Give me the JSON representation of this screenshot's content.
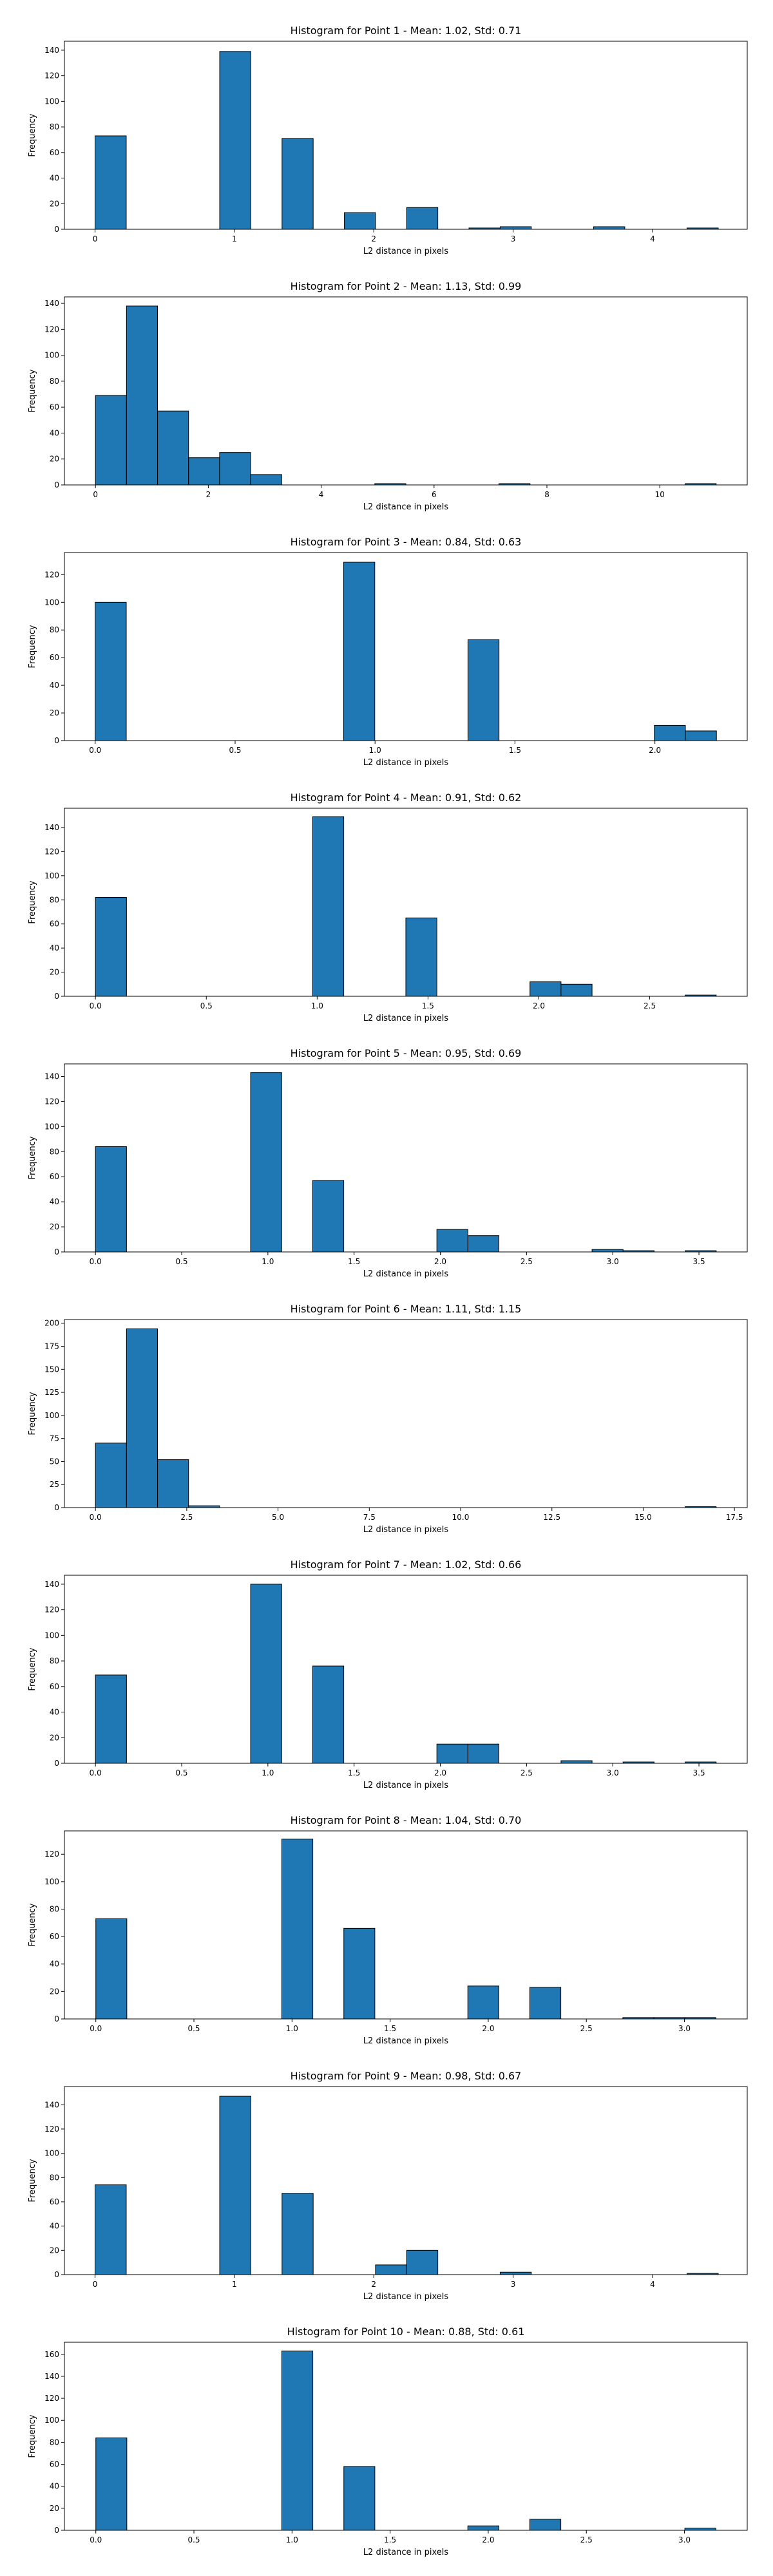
{
  "figure": {
    "bar_color": "#1f77b4",
    "edge_color": "#000000",
    "background": "#ffffff"
  },
  "chart_data": [
    {
      "type": "bar",
      "title": "Histogram for Point 1 - Mean: 1.02, Std: 0.71",
      "xlabel": "L2 distance in pixels",
      "ylabel": "Frequency",
      "xlim": [
        -0.22,
        4.68
      ],
      "ylim": [
        0,
        147
      ],
      "xticks": [
        0,
        1,
        2,
        3,
        4
      ],
      "xtick_labels": [
        "0",
        "1",
        "2",
        "3",
        "4"
      ],
      "yticks": [
        0,
        20,
        40,
        60,
        80,
        100,
        120,
        140
      ],
      "bin_edges": [
        0,
        0.2236,
        0.4472,
        0.6708,
        0.8944,
        1.118,
        1.3416,
        1.5652,
        1.7888,
        2.0124,
        2.236,
        2.4596,
        2.6832,
        2.9068,
        3.1304,
        3.354,
        3.5776,
        3.8012,
        4.0248,
        4.2484,
        4.472
      ],
      "values": [
        73,
        0,
        0,
        0,
        139,
        0,
        71,
        0,
        13,
        0,
        17,
        0,
        1,
        2,
        0,
        0,
        2,
        0,
        0,
        1
      ]
    },
    {
      "type": "bar",
      "title": "Histogram for Point 2 - Mean: 1.13, Std: 0.99",
      "xlabel": "L2 distance in pixels",
      "ylabel": "Frequency",
      "xlim": [
        -0.55,
        11.55
      ],
      "ylim": [
        0,
        145
      ],
      "xticks": [
        0,
        2,
        4,
        6,
        8,
        10
      ],
      "xtick_labels": [
        "0",
        "2",
        "4",
        "6",
        "8",
        "10"
      ],
      "yticks": [
        0,
        20,
        40,
        60,
        80,
        100,
        120,
        140
      ],
      "bin_edges": [
        0,
        0.55,
        1.1,
        1.65,
        2.2,
        2.75,
        3.3,
        3.85,
        4.4,
        4.95,
        5.5,
        6.05,
        6.6,
        7.15,
        7.7,
        8.25,
        8.8,
        9.35,
        9.9,
        10.45,
        11.0
      ],
      "values": [
        69,
        138,
        57,
        21,
        25,
        8,
        0,
        0,
        0,
        1,
        0,
        0,
        0,
        1,
        0,
        0,
        0,
        0,
        0,
        1
      ]
    },
    {
      "type": "bar",
      "title": "Histogram for Point 3 - Mean: 0.84, Std: 0.63",
      "xlabel": "L2 distance in pixels",
      "ylabel": "Frequency",
      "xlim": [
        -0.11,
        2.33
      ],
      "ylim": [
        0,
        136
      ],
      "xticks": [
        0.0,
        0.5,
        1.0,
        1.5,
        2.0
      ],
      "xtick_labels": [
        "0.0",
        "0.5",
        "1.0",
        "1.5",
        "2.0"
      ],
      "yticks": [
        0,
        20,
        40,
        60,
        80,
        100,
        120
      ],
      "bin_edges": [
        0,
        0.111,
        0.222,
        0.333,
        0.444,
        0.555,
        0.666,
        0.777,
        0.888,
        0.999,
        1.11,
        1.221,
        1.332,
        1.443,
        1.554,
        1.665,
        1.776,
        1.887,
        1.998,
        2.109,
        2.22
      ],
      "values": [
        100,
        0,
        0,
        0,
        0,
        0,
        0,
        0,
        129,
        0,
        0,
        0,
        73,
        0,
        0,
        0,
        0,
        0,
        11,
        7
      ]
    },
    {
      "type": "bar",
      "title": "Histogram for Point 4 - Mean: 0.91, Std: 0.62",
      "xlabel": "L2 distance in pixels",
      "ylabel": "Frequency",
      "xlim": [
        -0.14,
        2.94
      ],
      "ylim": [
        0,
        156
      ],
      "xticks": [
        0.0,
        0.5,
        1.0,
        1.5,
        2.0,
        2.5
      ],
      "xtick_labels": [
        "0.0",
        "0.5",
        "1.0",
        "1.5",
        "2.0",
        "2.5"
      ],
      "yticks": [
        0,
        20,
        40,
        60,
        80,
        100,
        120,
        140
      ],
      "bin_edges": [
        0,
        0.14,
        0.28,
        0.42,
        0.56,
        0.7,
        0.84,
        0.98,
        1.12,
        1.26,
        1.4,
        1.54,
        1.68,
        1.82,
        1.96,
        2.1,
        2.24,
        2.38,
        2.52,
        2.66,
        2.8
      ],
      "values": [
        82,
        0,
        0,
        0,
        0,
        0,
        0,
        149,
        0,
        0,
        65,
        0,
        0,
        0,
        12,
        10,
        0,
        0,
        0,
        1
      ]
    },
    {
      "type": "bar",
      "title": "Histogram for Point 5 - Mean: 0.95, Std: 0.69",
      "xlabel": "L2 distance in pixels",
      "ylabel": "Frequency",
      "xlim": [
        -0.18,
        3.78
      ],
      "ylim": [
        0,
        150
      ],
      "xticks": [
        0.0,
        0.5,
        1.0,
        1.5,
        2.0,
        2.5,
        3.0,
        3.5
      ],
      "xtick_labels": [
        "0.0",
        "0.5",
        "1.0",
        "1.5",
        "2.0",
        "2.5",
        "3.0",
        "3.5"
      ],
      "yticks": [
        0,
        20,
        40,
        60,
        80,
        100,
        120,
        140
      ],
      "bin_edges": [
        0,
        0.18,
        0.36,
        0.54,
        0.72,
        0.9,
        1.08,
        1.26,
        1.44,
        1.62,
        1.8,
        1.98,
        2.16,
        2.34,
        2.52,
        2.7,
        2.88,
        3.06,
        3.24,
        3.42,
        3.6
      ],
      "values": [
        84,
        0,
        0,
        0,
        0,
        143,
        0,
        57,
        0,
        0,
        0,
        18,
        13,
        0,
        0,
        0,
        2,
        1,
        0,
        1
      ]
    },
    {
      "type": "bar",
      "title": "Histogram for Point 6 - Mean: 1.11, Std: 1.15",
      "xlabel": "L2 distance in pixels",
      "ylabel": "Frequency",
      "xlim": [
        -0.85,
        17.85
      ],
      "ylim": [
        0,
        204
      ],
      "xticks": [
        0.0,
        2.5,
        5.0,
        7.5,
        10.0,
        12.5,
        15.0,
        17.5
      ],
      "xtick_labels": [
        "0.0",
        "2.5",
        "5.0",
        "7.5",
        "10.0",
        "12.5",
        "15.0",
        "17.5"
      ],
      "yticks": [
        0,
        25,
        50,
        75,
        100,
        125,
        150,
        175,
        200
      ],
      "bin_edges": [
        0,
        0.85,
        1.7,
        2.55,
        3.4,
        4.25,
        5.1,
        5.95,
        6.8,
        7.65,
        8.5,
        9.35,
        10.2,
        11.05,
        11.9,
        12.75,
        13.6,
        14.45,
        15.3,
        16.15,
        17.0
      ],
      "values": [
        70,
        194,
        52,
        2,
        0,
        0,
        0,
        0,
        0,
        0,
        0,
        0,
        0,
        0,
        0,
        0,
        0,
        0,
        0,
        1
      ]
    },
    {
      "type": "bar",
      "title": "Histogram for Point 7 - Mean: 1.02, Std: 0.66",
      "xlabel": "L2 distance in pixels",
      "ylabel": "Frequency",
      "xlim": [
        -0.18,
        3.78
      ],
      "ylim": [
        0,
        147
      ],
      "xticks": [
        0.0,
        0.5,
        1.0,
        1.5,
        2.0,
        2.5,
        3.0,
        3.5
      ],
      "xtick_labels": [
        "0.0",
        "0.5",
        "1.0",
        "1.5",
        "2.0",
        "2.5",
        "3.0",
        "3.5"
      ],
      "yticks": [
        0,
        20,
        40,
        60,
        80,
        100,
        120,
        140
      ],
      "bin_edges": [
        0,
        0.18,
        0.36,
        0.54,
        0.72,
        0.9,
        1.08,
        1.26,
        1.44,
        1.62,
        1.8,
        1.98,
        2.16,
        2.34,
        2.52,
        2.7,
        2.88,
        3.06,
        3.24,
        3.42,
        3.6
      ],
      "values": [
        69,
        0,
        0,
        0,
        0,
        140,
        0,
        76,
        0,
        0,
        0,
        15,
        15,
        0,
        0,
        2,
        0,
        1,
        0,
        1
      ]
    },
    {
      "type": "bar",
      "title": "Histogram for Point 8 - Mean: 1.04, Std: 0.70",
      "xlabel": "L2 distance in pixels",
      "ylabel": "Frequency",
      "xlim": [
        -0.16,
        3.32
      ],
      "ylim": [
        0,
        137
      ],
      "xticks": [
        0.0,
        0.5,
        1.0,
        1.5,
        2.0,
        2.5,
        3.0
      ],
      "xtick_labels": [
        "0.0",
        "0.5",
        "1.0",
        "1.5",
        "2.0",
        "2.5",
        "3.0"
      ],
      "yticks": [
        0,
        20,
        40,
        60,
        80,
        100,
        120
      ],
      "bin_edges": [
        0,
        0.158,
        0.316,
        0.474,
        0.632,
        0.79,
        0.948,
        1.106,
        1.264,
        1.422,
        1.58,
        1.738,
        1.896,
        2.054,
        2.212,
        2.37,
        2.528,
        2.686,
        2.844,
        3.002,
        3.16
      ],
      "values": [
        73,
        0,
        0,
        0,
        0,
        0,
        131,
        0,
        66,
        0,
        0,
        0,
        24,
        0,
        23,
        0,
        0,
        1,
        1,
        1
      ]
    },
    {
      "type": "bar",
      "title": "Histogram for Point 9 - Mean: 0.98, Std: 0.67",
      "xlabel": "L2 distance in pixels",
      "ylabel": "Frequency",
      "xlim": [
        -0.22,
        4.68
      ],
      "ylim": [
        0,
        155
      ],
      "xticks": [
        0,
        1,
        2,
        3,
        4
      ],
      "xtick_labels": [
        "0",
        "1",
        "2",
        "3",
        "4"
      ],
      "yticks": [
        0,
        20,
        40,
        60,
        80,
        100,
        120,
        140
      ],
      "bin_edges": [
        0,
        0.2236,
        0.4472,
        0.6708,
        0.8944,
        1.118,
        1.3416,
        1.5652,
        1.7888,
        2.0124,
        2.236,
        2.4596,
        2.6832,
        2.9068,
        3.1304,
        3.354,
        3.5776,
        3.8012,
        4.0248,
        4.2484,
        4.472
      ],
      "values": [
        74,
        0,
        0,
        0,
        147,
        0,
        67,
        0,
        0,
        8,
        20,
        0,
        0,
        2,
        0,
        0,
        0,
        0,
        0,
        1
      ]
    },
    {
      "type": "bar",
      "title": "Histogram for Point 10 - Mean: 0.88, Std: 0.61",
      "xlabel": "L2 distance in pixels",
      "ylabel": "Frequency",
      "xlim": [
        -0.16,
        3.32
      ],
      "ylim": [
        0,
        171
      ],
      "xticks": [
        0.0,
        0.5,
        1.0,
        1.5,
        2.0,
        2.5,
        3.0
      ],
      "xtick_labels": [
        "0.0",
        "0.5",
        "1.0",
        "1.5",
        "2.0",
        "2.5",
        "3.0"
      ],
      "yticks": [
        0,
        20,
        40,
        60,
        80,
        100,
        120,
        140,
        160
      ],
      "bin_edges": [
        0,
        0.158,
        0.316,
        0.474,
        0.632,
        0.79,
        0.948,
        1.106,
        1.264,
        1.422,
        1.58,
        1.738,
        1.896,
        2.054,
        2.212,
        2.37,
        2.528,
        2.686,
        2.844,
        3.002,
        3.16
      ],
      "values": [
        84,
        0,
        0,
        0,
        0,
        0,
        163,
        0,
        58,
        0,
        0,
        0,
        4,
        0,
        10,
        0,
        0,
        0,
        0,
        2
      ]
    }
  ]
}
